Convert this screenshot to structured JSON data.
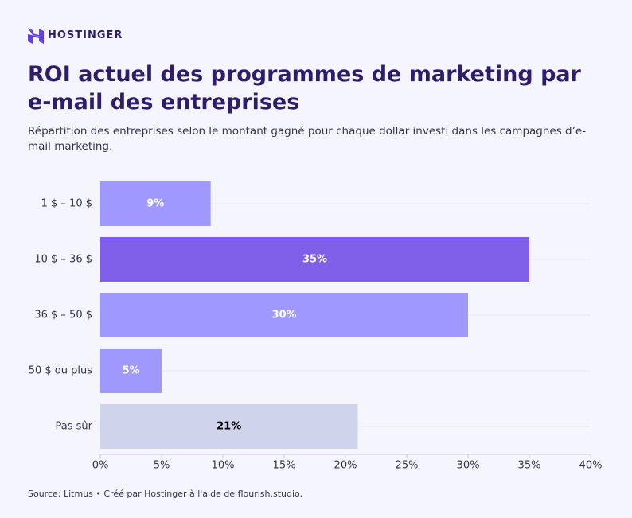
{
  "brand": "HOSTINGER",
  "chart_data": {
    "type": "barh",
    "title": "ROI actuel des programmes de marketing par e-mail des entreprises",
    "subtitle": "Répartition des entreprises selon le montant gagné pour chaque dollar investi dans les campagnes d’e-mail marketing.",
    "categories": [
      "1 $ – 10 $",
      "10 $ – 36 $",
      "36 $ – 50 $",
      "50 $ ou plus",
      "Pas sûr"
    ],
    "values": [
      9,
      35,
      30,
      5,
      21
    ],
    "value_labels": [
      "9%",
      "35%",
      "30%",
      "5%",
      "21%"
    ],
    "colors": [
      "#9e98ff",
      "#7f5ee8",
      "#9e98ff",
      "#9e98ff",
      "#cfd3ec"
    ],
    "label_colors": [
      "#ffffff",
      "#ffffff",
      "#ffffff",
      "#ffffff",
      "#000000"
    ],
    "xlim": [
      0,
      40
    ],
    "xticks": [
      {
        "value": 0,
        "label": "0%"
      },
      {
        "value": 5,
        "label": "5%"
      },
      {
        "value": 10,
        "label": "10%"
      },
      {
        "value": 15,
        "label": "15%"
      },
      {
        "value": 20,
        "label": "20%"
      },
      {
        "value": 25,
        "label": "25%"
      },
      {
        "value": 30,
        "label": "30%"
      },
      {
        "value": 35,
        "label": "35%"
      },
      {
        "value": 40,
        "label": "40%"
      }
    ],
    "grid": true
  },
  "source": "Source: Litmus • Créé par Hostinger à l'aide de flourish.studio."
}
